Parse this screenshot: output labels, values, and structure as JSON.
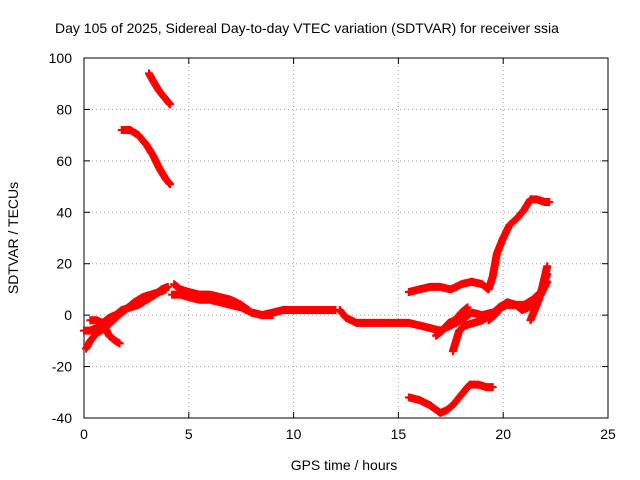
{
  "chart_data": {
    "type": "scatter",
    "title": "Day 105 of 2025, Sidereal Day-to-day VTEC variation (SDTVAR) for receiver ssia",
    "xlabel": "GPS time / hours",
    "ylabel": "SDTVAR / TECUs",
    "xlim": [
      0,
      25
    ],
    "ylim": [
      -40,
      100
    ],
    "xticks": [
      "0",
      "5",
      "10",
      "15",
      "20",
      "25"
    ],
    "yticks": [
      "-40",
      "-20",
      "0",
      "20",
      "40",
      "60",
      "80",
      "100"
    ],
    "grid": true,
    "marker": "plus",
    "color": "#ff0000",
    "series": [
      {
        "x": [
          3.1,
          3.3,
          3.6,
          3.9,
          4.1
        ],
        "y": [
          94,
          91,
          87,
          84,
          82
        ]
      },
      {
        "x": [
          1.8,
          2.2,
          2.6,
          3.0,
          3.3,
          3.6,
          3.9,
          4.1
        ],
        "y": [
          72,
          72,
          70,
          66,
          62,
          57,
          53,
          51
        ]
      },
      {
        "x": [
          0.0,
          0.3,
          0.6,
          0.9,
          1.2,
          1.5,
          1.8,
          2.2,
          2.6,
          3.0,
          3.4,
          3.7,
          4.0
        ],
        "y": [
          -6,
          -6,
          -5,
          -3,
          -1,
          0,
          2,
          3,
          4,
          6,
          8,
          10,
          11
        ]
      },
      {
        "x": [
          0.1,
          0.3,
          0.6,
          1.0,
          1.4,
          1.8,
          2.1,
          2.4,
          2.8,
          3.2,
          3.6,
          3.9
        ],
        "y": [
          -13,
          -10,
          -7,
          -5,
          -2,
          1,
          3,
          5,
          7,
          8,
          9,
          10
        ]
      },
      {
        "x": [
          0.3,
          0.6,
          0.9,
          1.2,
          1.5,
          1.7
        ],
        "y": [
          -2,
          -2,
          -3,
          -8,
          -10,
          -11
        ]
      },
      {
        "x": [
          4.3,
          4.6,
          5.0,
          5.5,
          6.0,
          6.5,
          7.0,
          7.5,
          8.0,
          8.5,
          9.0,
          9.5,
          10.0,
          10.5,
          11.0,
          11.5,
          12.0
        ],
        "y": [
          12,
          10,
          9,
          8,
          8,
          7,
          6,
          4,
          1,
          0,
          1,
          2,
          2,
          2,
          2,
          2,
          2
        ]
      },
      {
        "x": [
          4.2,
          4.6,
          5.0,
          5.5,
          6.0,
          6.5,
          7.0,
          7.5,
          8.0,
          8.5,
          9.0
        ],
        "y": [
          8,
          8,
          7,
          6,
          6,
          5,
          4,
          3,
          1,
          0,
          0
        ]
      },
      {
        "x": [
          12.2,
          12.5,
          13.0,
          13.5,
          14.0,
          14.5,
          15.0,
          15.5,
          16.0,
          16.5,
          17.0,
          17.5,
          18.0,
          18.5,
          19.0,
          19.5
        ],
        "y": [
          2,
          -1,
          -3,
          -3,
          -3,
          -3,
          -3,
          -3,
          -4,
          -5,
          -6,
          -4,
          -2,
          1,
          0,
          1
        ]
      },
      {
        "x": [
          16.8,
          17.1,
          17.4,
          17.7,
          18.0,
          18.3
        ],
        "y": [
          -8,
          -6,
          -3,
          -2,
          1,
          3
        ]
      },
      {
        "x": [
          17.6,
          17.9,
          18.2,
          18.6,
          19.0,
          19.4,
          19.8,
          20.2,
          20.6,
          21.0,
          21.4,
          21.8,
          22.1
        ],
        "y": [
          -14,
          -6,
          -4,
          -3,
          -2,
          0,
          3,
          5,
          4,
          4,
          6,
          9,
          16
        ]
      },
      {
        "x": [
          15.5,
          16.0,
          16.5,
          17.0,
          17.5,
          18.0,
          18.5,
          19.0,
          19.3,
          19.5,
          19.7,
          20.0,
          20.3,
          20.7,
          21.0,
          21.3,
          21.6,
          22.0,
          22.2
        ],
        "y": [
          9,
          10,
          11,
          11,
          10,
          12,
          13,
          12,
          10,
          15,
          24,
          30,
          35,
          38,
          41,
          45,
          45,
          44,
          44
        ]
      },
      {
        "x": [
          19.3,
          19.6,
          19.9,
          20.2,
          20.6,
          20.9,
          21.2,
          21.5,
          21.8,
          22.1
        ],
        "y": [
          -2,
          0,
          3,
          4,
          4,
          2,
          3,
          5,
          8,
          13
        ]
      },
      {
        "x": [
          21.3,
          21.5,
          21.7,
          21.9,
          22.1
        ],
        "y": [
          -2,
          2,
          6,
          12,
          19
        ]
      },
      {
        "x": [
          15.5,
          16.0,
          16.5,
          17.0,
          17.3,
          17.6,
          18.0,
          18.4,
          18.8,
          19.2,
          19.5
        ],
        "y": [
          -32,
          -33,
          -35,
          -38,
          -37,
          -35,
          -31,
          -27,
          -27,
          -28,
          -28
        ]
      }
    ]
  }
}
